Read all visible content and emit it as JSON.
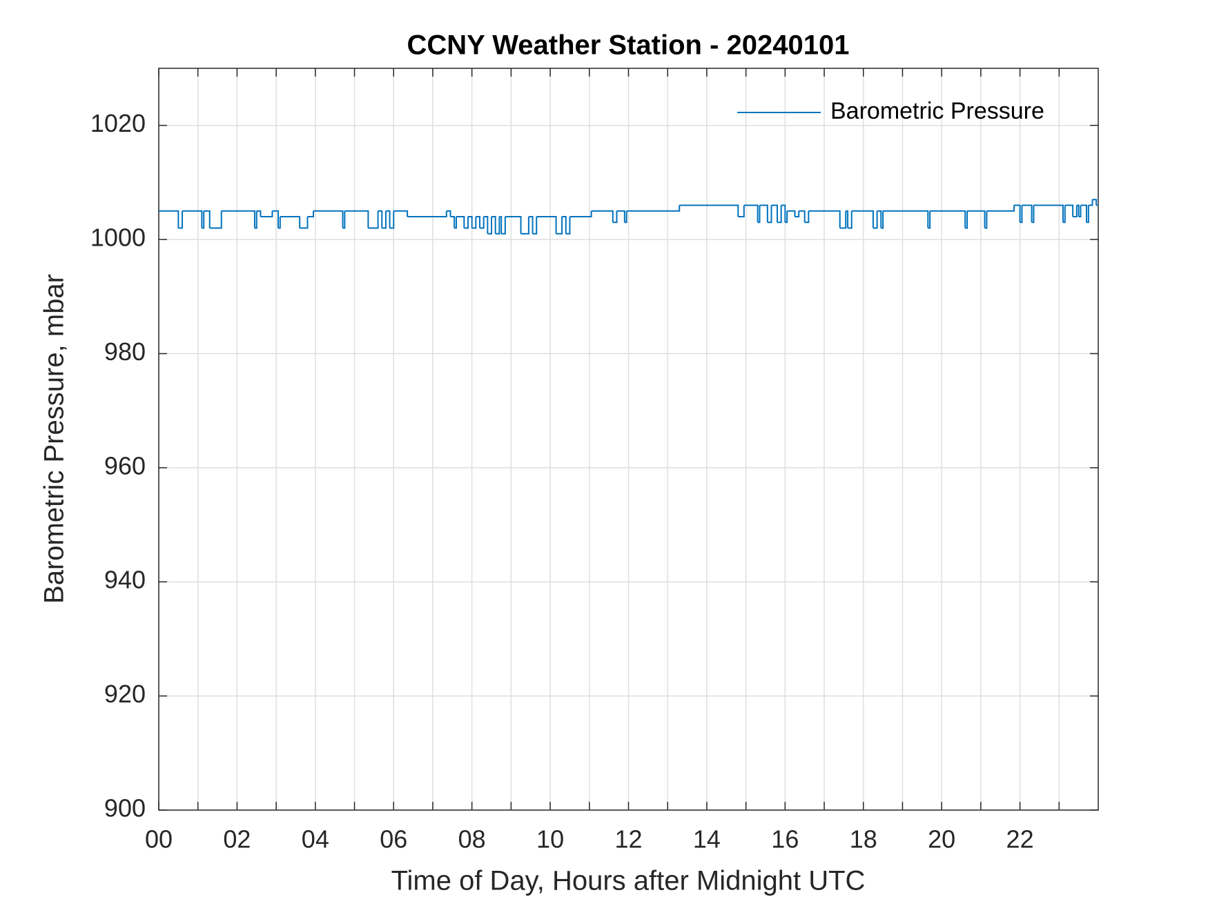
{
  "chart_data": {
    "type": "line",
    "title": "CCNY Weather Station - 20240101",
    "xlabel": "Time of Day, Hours after Midnight UTC",
    "ylabel": "Barometric Pressure, mbar",
    "xlim": [
      0,
      24
    ],
    "ylim": [
      900,
      1030
    ],
    "xticks": [
      {
        "value": 0,
        "label": "00"
      },
      {
        "value": 2,
        "label": "02"
      },
      {
        "value": 4,
        "label": "04"
      },
      {
        "value": 6,
        "label": "06"
      },
      {
        "value": 8,
        "label": "08"
      },
      {
        "value": 10,
        "label": "10"
      },
      {
        "value": 12,
        "label": "12"
      },
      {
        "value": 14,
        "label": "14"
      },
      {
        "value": 16,
        "label": "16"
      },
      {
        "value": 18,
        "label": "18"
      },
      {
        "value": 20,
        "label": "20"
      },
      {
        "value": 22,
        "label": "22"
      }
    ],
    "minor_xticks": [
      1,
      3,
      5,
      7,
      9,
      11,
      13,
      15,
      17,
      19,
      21,
      23
    ],
    "yticks": [
      900,
      920,
      940,
      960,
      980,
      1000,
      1020
    ],
    "grid": true,
    "step": "post",
    "legend": "upper right",
    "series": [
      {
        "name": "Barometric Pressure",
        "color": "#0072bd",
        "x": [
          0,
          0.5,
          0.6,
          1.1,
          1.15,
          1.3,
          1.6,
          2.45,
          2.5,
          2.6,
          2.9,
          3.05,
          3.1,
          3.6,
          3.8,
          3.95,
          4.7,
          4.75,
          5.35,
          5.6,
          5.7,
          5.8,
          5.9,
          6.0,
          6.35,
          7.35,
          7.45,
          7.55,
          7.6,
          7.8,
          7.9,
          8.0,
          8.1,
          8.2,
          8.3,
          8.4,
          8.5,
          8.6,
          8.7,
          8.75,
          8.85,
          9.25,
          9.45,
          9.55,
          9.65,
          10.15,
          10.3,
          10.4,
          10.5,
          11.05,
          11.6,
          11.7,
          11.9,
          11.95,
          13.3,
          14.8,
          14.95,
          15.3,
          15.35,
          15.55,
          15.65,
          15.8,
          15.9,
          16.0,
          16.05,
          16.25,
          16.35,
          16.5,
          16.6,
          17.4,
          17.55,
          17.6,
          17.7,
          18.25,
          18.35,
          18.45,
          18.5,
          19.65,
          19.7,
          20.6,
          20.65,
          21.1,
          21.15,
          21.85,
          22.0,
          22.05,
          22.3,
          22.35,
          23.1,
          23.15,
          23.35,
          23.45,
          23.5,
          23.55,
          23.7,
          23.75,
          23.85,
          23.95,
          24
        ],
        "values": [
          1005,
          1002,
          1005,
          1002,
          1005,
          1002,
          1005,
          1002,
          1005,
          1004,
          1005,
          1002,
          1004,
          1002,
          1004,
          1005,
          1002,
          1005,
          1002,
          1005,
          1002,
          1005,
          1002,
          1005,
          1004,
          1005,
          1004,
          1002,
          1004,
          1002,
          1004,
          1002,
          1004,
          1002,
          1004,
          1001,
          1004,
          1001,
          1004,
          1001,
          1004,
          1001,
          1004,
          1001,
          1004,
          1001,
          1004,
          1001,
          1004,
          1005,
          1003,
          1005,
          1003,
          1005,
          1006,
          1004,
          1006,
          1003,
          1006,
          1003,
          1006,
          1003,
          1006,
          1003,
          1005,
          1004,
          1005,
          1003,
          1005,
          1002,
          1005,
          1002,
          1005,
          1002,
          1005,
          1002,
          1005,
          1002,
          1005,
          1002,
          1005,
          1002,
          1005,
          1006,
          1003,
          1006,
          1003,
          1006,
          1003,
          1006,
          1004,
          1006,
          1004,
          1006,
          1003,
          1006,
          1007,
          1006,
          1006
        ]
      }
    ]
  }
}
